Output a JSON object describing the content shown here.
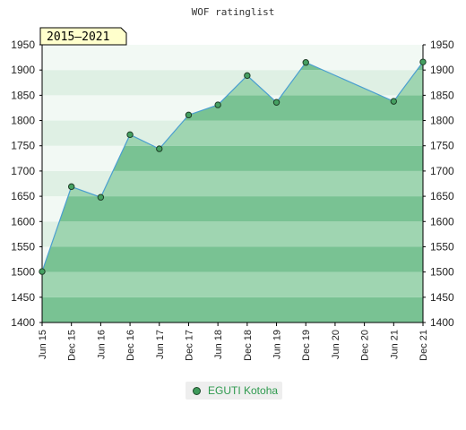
{
  "chart_data": {
    "type": "area",
    "title": "WOF ratinglist",
    "period_badge": "2015–2021",
    "ylim": [
      1400,
      1950
    ],
    "yticks": [
      1400,
      1450,
      1500,
      1550,
      1600,
      1650,
      1700,
      1750,
      1800,
      1850,
      1900,
      1950
    ],
    "xticks": [
      "Jun 15",
      "Dec 15",
      "Jun 16",
      "Dec 16",
      "Jun 17",
      "Dec 17",
      "Jun 18",
      "Dec 18",
      "Jun 19",
      "Dec 19",
      "Jun 20",
      "Dec 20",
      "Jun 21",
      "Dec 21"
    ],
    "grid": true,
    "legend_position": "bottom",
    "series": [
      {
        "name": "EGUTI Kotoha",
        "x": [
          "Jun 15",
          "Dec 15",
          "Jun 16",
          "Dec 16",
          "Jun 17",
          "Dec 17",
          "Jun 18",
          "Dec 18",
          "Jun 19",
          "Dec 19",
          "Jun 21",
          "Dec 21"
        ],
        "values": [
          1501,
          1669,
          1648,
          1772,
          1744,
          1811,
          1831,
          1889,
          1836,
          1915,
          1838,
          1916
        ]
      }
    ]
  },
  "colors": {
    "area_dark": "#79c293",
    "area_light": "#9fd5b1",
    "band_light": "#f2f9f4",
    "band_dark": "#dff0e4",
    "line": "#4b9fd0",
    "marker_fill": "#45a061",
    "marker_stroke": "#1e3f28",
    "badge_fill": "#ffffcc",
    "legend_text": "#2e9a4e"
  }
}
